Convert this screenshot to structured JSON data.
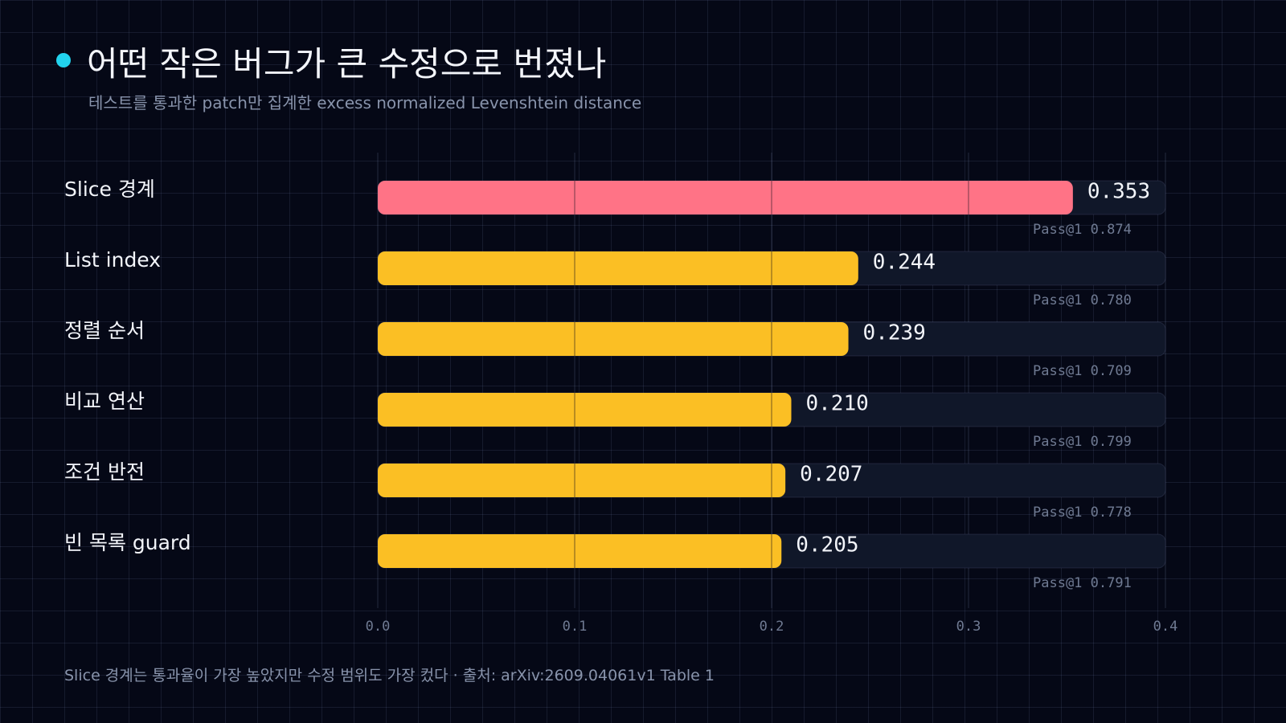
{
  "header": {
    "title": "어떤 작은 버그가 큰 수정으로 번졌나",
    "subtitle": "테스트를 통과한 patch만 집계한 excess normalized Levenshtein distance"
  },
  "footer": {
    "note": "Slice 경계는 통과율이 가장 높았지만 수정 범위도 가장 컸다 · 출처: arXiv:2609.04061v1 Table 1"
  },
  "colors": {
    "highlight_bar": "#ff7386",
    "bar": "#fbbf24",
    "track": "#101729",
    "accent_dot": "#22d3ee"
  },
  "chart_data": {
    "type": "bar",
    "orientation": "horizontal",
    "categories": [
      "Slice 경계",
      "List index",
      "정렬 순서",
      "비교 연산",
      "조건 반전",
      "빈 목록 guard"
    ],
    "values": [
      0.353,
      0.244,
      0.239,
      0.21,
      0.207,
      0.205
    ],
    "value_labels": [
      "0.353",
      "0.244",
      "0.239",
      "0.210",
      "0.207",
      "0.205"
    ],
    "pass_labels": [
      "Pass@1 0.874",
      "Pass@1 0.780",
      "Pass@1 0.709",
      "Pass@1 0.799",
      "Pass@1 0.778",
      "Pass@1 0.791"
    ],
    "pass_at_1": [
      0.874,
      0.78,
      0.709,
      0.799,
      0.778,
      0.791
    ],
    "highlight_index": 0,
    "xlim": [
      0,
      0.4
    ],
    "ticks": [
      0.0,
      0.1,
      0.2,
      0.3,
      0.4
    ],
    "tick_labels": [
      "0.0",
      "0.1",
      "0.2",
      "0.3",
      "0.4"
    ],
    "grid": true
  }
}
